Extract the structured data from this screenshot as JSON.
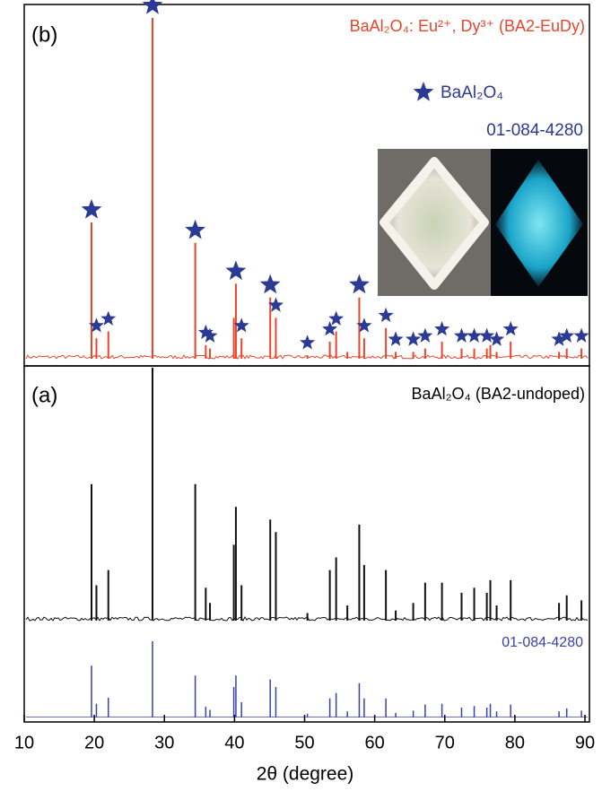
{
  "chart_data": [
    {
      "type": "stick",
      "panel_label": "(b)",
      "series": [
        {
          "name": "BaAl₂O₄: Eu²⁺, Dy³⁺ (BA2-EuDy)",
          "color": "#e8452c",
          "x": [
            19.6,
            20.3,
            22.0,
            28.3,
            34.4,
            35.9,
            36.5,
            39.9,
            40.2,
            41.0,
            45.1,
            45.9,
            50.4,
            53.6,
            54.5,
            56.1,
            57.8,
            58.5,
            61.6,
            63.0,
            65.5,
            67.2,
            69.6,
            72.4,
            74.2,
            76.0,
            76.5,
            77.4,
            79.4,
            86.3,
            87.4,
            89.5
          ],
          "values": [
            40,
            6,
            8,
            100,
            34,
            4,
            3,
            12,
            22,
            6,
            18,
            12,
            1,
            5,
            8,
            2,
            18,
            6,
            9,
            2,
            2,
            3,
            5,
            3,
            3,
            3,
            4,
            2,
            5,
            2,
            3,
            3
          ]
        }
      ],
      "markers": {
        "name": "BaAl₂O₄",
        "code": "01-084-4280",
        "color": "#2b3a94",
        "x": [
          19.6,
          20.3,
          22.0,
          28.3,
          34.4,
          35.9,
          36.5,
          40.2,
          41.0,
          45.1,
          45.9,
          50.4,
          53.6,
          54.5,
          57.8,
          58.5,
          61.6,
          63.0,
          65.5,
          67.2,
          69.6,
          72.4,
          74.2,
          76.0,
          77.4,
          79.4,
          86.3,
          87.4,
          89.5
        ]
      }
    },
    {
      "type": "stick",
      "panel_label": "(a)",
      "x_label": "2θ (degree)",
      "xlim": [
        10,
        90
      ],
      "xticks": [
        10,
        20,
        30,
        40,
        50,
        60,
        70,
        80,
        90
      ],
      "series": [
        {
          "name": "BaAl₂O₄ (BA2-undoped)",
          "color": "#111111",
          "x": [
            19.6,
            20.3,
            22.0,
            28.3,
            34.4,
            35.9,
            36.5,
            39.9,
            40.2,
            41.0,
            45.1,
            45.9,
            50.4,
            53.6,
            54.5,
            56.1,
            57.8,
            58.5,
            61.6,
            63.0,
            65.5,
            67.2,
            69.6,
            72.4,
            74.2,
            76.0,
            76.5,
            77.4,
            79.4,
            86.3,
            87.4,
            89.5
          ],
          "values": [
            54,
            14,
            20,
            100,
            54,
            13,
            7,
            30,
            45,
            14,
            40,
            35,
            3,
            20,
            25,
            6,
            38,
            22,
            20,
            4,
            7,
            15,
            15,
            11,
            13,
            11,
            16,
            6,
            16,
            7,
            10,
            8
          ]
        },
        {
          "name": "01-084-4280",
          "color": "#3b40a8",
          "x": [
            19.6,
            20.3,
            22.0,
            28.3,
            34.4,
            35.9,
            36.5,
            39.9,
            40.2,
            41.0,
            45.1,
            45.9,
            50.4,
            53.6,
            54.5,
            56.1,
            57.8,
            58.5,
            61.6,
            63.0,
            65.5,
            67.2,
            69.6,
            72.4,
            74.2,
            76.0,
            76.5,
            77.4,
            79.4,
            86.3,
            87.4,
            89.5
          ],
          "values": [
            68,
            18,
            26,
            100,
            55,
            14,
            10,
            40,
            55,
            20,
            50,
            40,
            5,
            25,
            32,
            8,
            45,
            25,
            25,
            6,
            9,
            17,
            18,
            13,
            15,
            13,
            18,
            8,
            17,
            8,
            12,
            9
          ]
        }
      ]
    }
  ]
}
